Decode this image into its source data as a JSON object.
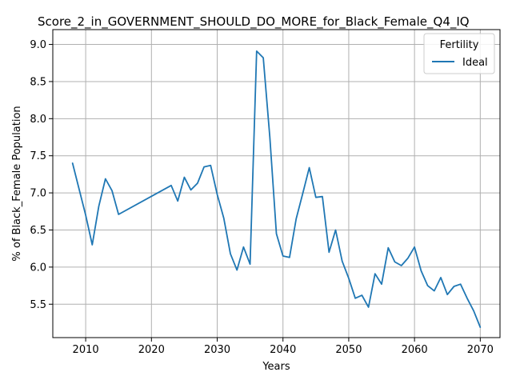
{
  "chart_data": {
    "type": "line",
    "title": "Score_2_in_GOVERNMENT_SHOULD_DO_MORE_for_Black_Female_Q4_IQ",
    "xlabel": "Years",
    "ylabel": "% of Black_Female Population",
    "xlim": [
      2005,
      2073
    ],
    "ylim": [
      5.05,
      9.2
    ],
    "xticks": [
      2010,
      2020,
      2030,
      2040,
      2050,
      2060,
      2070
    ],
    "yticks": [
      5.5,
      6.0,
      6.5,
      7.0,
      7.5,
      8.0,
      8.5,
      9.0
    ],
    "xtick_labels": [
      "2010",
      "2020",
      "2030",
      "2040",
      "2050",
      "2060",
      "2070"
    ],
    "ytick_labels": [
      "5.5",
      "6.0",
      "6.5",
      "7.0",
      "7.5",
      "8.0",
      "8.5",
      "9.0"
    ],
    "grid": true,
    "legend": {
      "title": "Fertility",
      "position": "top-right"
    },
    "series": [
      {
        "name": "Ideal",
        "color": "#1f77b4",
        "x": [
          2008,
          2009,
          2010,
          2011,
          2012,
          2013,
          2014,
          2015,
          2023,
          2024,
          2025,
          2026,
          2027,
          2028,
          2029,
          2030,
          2031,
          2032,
          2033,
          2034,
          2035,
          2036,
          2037,
          2038,
          2039,
          2040,
          2041,
          2042,
          2043,
          2044,
          2045,
          2046,
          2047,
          2048,
          2049,
          2050,
          2051,
          2052,
          2053,
          2054,
          2055,
          2056,
          2057,
          2058,
          2059,
          2060,
          2061,
          2062,
          2063,
          2064,
          2065,
          2066,
          2067,
          2068,
          2069,
          2070
        ],
        "y": [
          7.4,
          7.05,
          6.7,
          6.3,
          6.82,
          7.19,
          7.03,
          6.71,
          7.1,
          6.89,
          7.21,
          7.04,
          7.13,
          7.35,
          7.37,
          6.98,
          6.66,
          6.18,
          5.96,
          6.27,
          6.04,
          8.91,
          8.82,
          7.75,
          6.45,
          6.15,
          6.13,
          6.65,
          6.99,
          7.34,
          6.94,
          6.95,
          6.2,
          6.5,
          6.08,
          5.85,
          5.58,
          5.62,
          5.46,
          5.91,
          5.77,
          6.26,
          6.07,
          6.02,
          6.12,
          6.27,
          5.95,
          5.75,
          5.68,
          5.86,
          5.63,
          5.74,
          5.77,
          5.58,
          5.41,
          5.19
        ]
      }
    ]
  }
}
